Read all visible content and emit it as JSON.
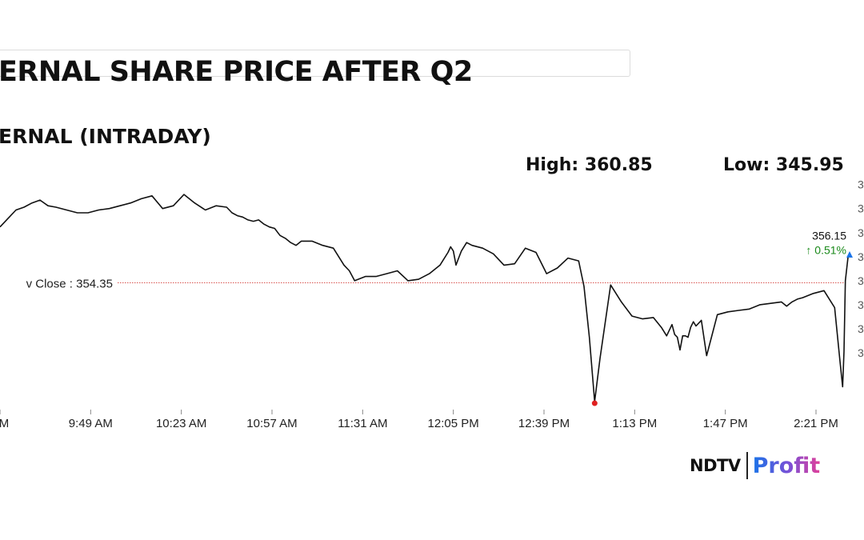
{
  "header": {
    "title": "ERNAL SHARE PRICE AFTER Q2",
    "subtitle": "ERNAL (INTRADAY)",
    "high": "High: 360.85",
    "low": "Low: 345.95"
  },
  "branding": {
    "ndtv": "NDTV",
    "profit": "Profit"
  },
  "colors": {
    "line": "#111111",
    "prev_close_line": "#d9534f",
    "low_marker": "#e02020",
    "change_positive": "#1a8a1a",
    "axis": "#555555",
    "brand_blue": "#1a73e8",
    "brand_pink": "#e0409a"
  },
  "chart_data": {
    "type": "line",
    "title": "ERNAL (INTRADAY)",
    "x_tick_labels": [
      "AM",
      "9:49 AM",
      "10:23 AM",
      "10:57 AM",
      "11:31 AM",
      "12:05 PM",
      "12:39 PM",
      "1:13 PM",
      "1:47 PM",
      "2:21 PM"
    ],
    "x_tick_minutes": [
      555,
      589,
      623,
      657,
      691,
      725,
      759,
      793,
      827,
      861
    ],
    "x_range_minutes": [
      555,
      873
    ],
    "ylim": [
      345.5,
      362.3
    ],
    "y_tick_labels": [
      "3",
      "3",
      "3",
      "3",
      "3",
      "3",
      "3",
      "3"
    ],
    "y_tick_values": [
      361.3,
      359.6,
      357.9,
      356.2,
      354.5,
      352.8,
      351.1,
      349.4
    ],
    "high": 360.85,
    "low": 345.95,
    "prev_close": 354.35,
    "prev_close_label": "v Close : 354.35",
    "last_price": 356.15,
    "last_price_label": "356.15",
    "change_label": "↑ 0.51%",
    "series": [
      {
        "x": [
          555,
          558,
          561,
          564,
          567,
          570,
          573,
          576,
          580,
          584,
          588,
          592,
          596,
          600,
          604,
          608,
          612,
          616,
          620,
          624,
          628,
          632,
          636,
          640,
          642,
          644,
          646,
          648,
          650,
          652,
          654,
          656,
          658,
          660,
          662,
          664,
          666,
          668,
          672,
          676,
          680,
          684,
          686,
          688,
          692,
          696,
          700,
          704,
          708,
          712,
          716,
          720,
          723,
          724,
          725,
          726,
          727,
          728,
          730,
          732,
          736,
          740,
          744,
          748,
          752,
          756,
          760,
          764,
          768,
          772,
          774,
          776,
          778,
          780,
          784,
          788,
          792,
          796,
          800,
          803,
          805,
          807,
          808,
          809,
          810,
          811,
          812,
          813,
          814,
          815,
          816,
          818,
          820,
          824,
          828,
          832,
          836,
          840,
          844,
          848,
          850,
          852,
          854,
          856,
          860,
          864,
          868,
          870,
          871,
          871.5,
          872,
          873
        ],
        "y": [
          358.3,
          358.9,
          359.5,
          359.7,
          360.0,
          360.2,
          359.8,
          359.7,
          359.5,
          359.3,
          359.3,
          359.5,
          359.6,
          359.8,
          360.0,
          360.3,
          360.5,
          359.6,
          359.8,
          360.6,
          360.0,
          359.5,
          359.8,
          359.7,
          359.3,
          359.1,
          359.0,
          358.8,
          358.7,
          358.8,
          358.5,
          358.3,
          358.2,
          357.7,
          357.5,
          357.2,
          357.0,
          357.3,
          357.3,
          357.0,
          356.8,
          355.6,
          355.2,
          354.5,
          354.8,
          354.8,
          355.0,
          355.2,
          354.5,
          354.6,
          355.0,
          355.6,
          356.5,
          356.9,
          356.6,
          355.6,
          356.1,
          356.6,
          357.2,
          357.0,
          356.8,
          356.4,
          355.6,
          355.7,
          356.8,
          356.5,
          355.0,
          355.4,
          356.1,
          355.9,
          354.1,
          350.5,
          345.95,
          349.0,
          354.2,
          353.0,
          352.0,
          351.8,
          351.9,
          351.2,
          350.6,
          351.4,
          350.7,
          350.5,
          349.6,
          350.6,
          350.6,
          350.5,
          351.2,
          351.6,
          351.3,
          351.7,
          349.2,
          352.1,
          352.3,
          352.4,
          352.5,
          352.8,
          352.9,
          353.0,
          352.7,
          353.0,
          353.2,
          353.3,
          353.6,
          353.8,
          352.6,
          348.8,
          347.0,
          349.5,
          354.5,
          356.15
        ]
      }
    ]
  }
}
